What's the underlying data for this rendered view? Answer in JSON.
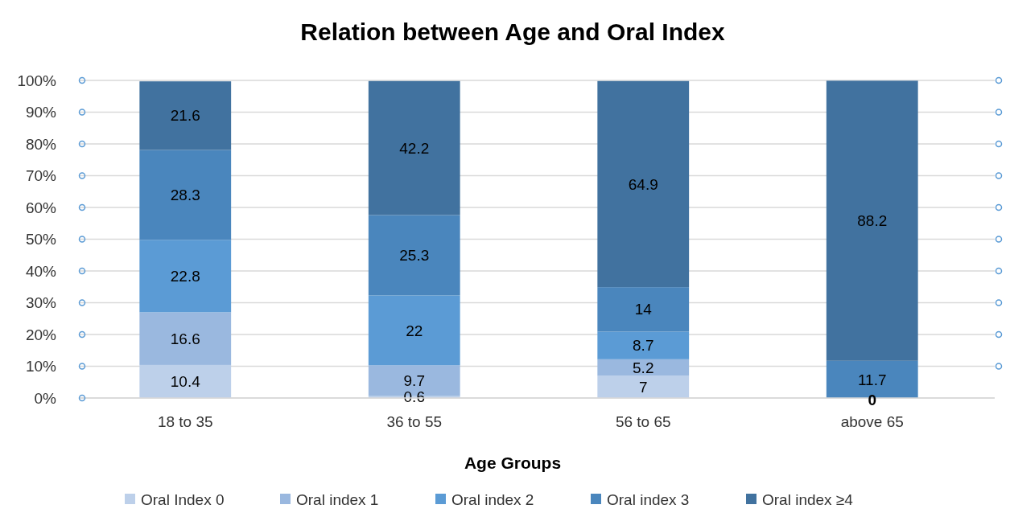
{
  "chart_data": {
    "type": "bar",
    "title": "Relation between Age and Oral Index",
    "xlabel": "Age Groups",
    "categories": [
      "18 to 35",
      "36 to 55",
      "56 to 65",
      "above 65"
    ],
    "stacked": true,
    "series": [
      {
        "name": "Oral Index 0",
        "color": "#bdd0ea",
        "values": [
          10.4,
          0.6,
          7,
          0
        ],
        "value_labels": [
          "10.4",
          "0.6",
          "7",
          null
        ]
      },
      {
        "name": "Oral index 1",
        "color": "#9ab8df",
        "values": [
          16.6,
          9.7,
          5.2,
          0
        ],
        "value_labels": [
          "16.6",
          "9.7",
          "5.2",
          null
        ]
      },
      {
        "name": "Oral index 2",
        "color": "#5b9bd5",
        "values": [
          22.8,
          22,
          8.7,
          0
        ],
        "value_labels": [
          "22.8",
          "22",
          "8.7",
          null
        ]
      },
      {
        "name": "Oral index 3",
        "color": "#4a86bd",
        "values": [
          28.3,
          25.3,
          14,
          11.7
        ],
        "value_labels": [
          "28.3",
          "25.3",
          "14",
          "11.7"
        ]
      },
      {
        "name": "Oral index ≥4",
        "color": "#41729f",
        "values": [
          21.6,
          42.2,
          64.9,
          88.2
        ],
        "value_labels": [
          "21.6",
          "42.2",
          "64.9",
          "88.2"
        ]
      }
    ],
    "ylim": [
      0,
      100
    ],
    "yticks": [
      {
        "value": 0,
        "label": "0%"
      },
      {
        "value": 10,
        "label": "10%"
      },
      {
        "value": 20,
        "label": "20%"
      },
      {
        "value": 30,
        "label": "30%"
      },
      {
        "value": 40,
        "label": "40%"
      },
      {
        "value": 50,
        "label": "50%"
      },
      {
        "value": 60,
        "label": "60%"
      },
      {
        "value": 70,
        "label": "70%"
      },
      {
        "value": 80,
        "label": "80%"
      },
      {
        "value": 90,
        "label": "90%"
      },
      {
        "value": 100,
        "label": "100%"
      }
    ],
    "grid": "y",
    "legend": "bottom",
    "annotations": [
      {
        "text": "0",
        "x": "above 65",
        "y": 0
      }
    ]
  }
}
